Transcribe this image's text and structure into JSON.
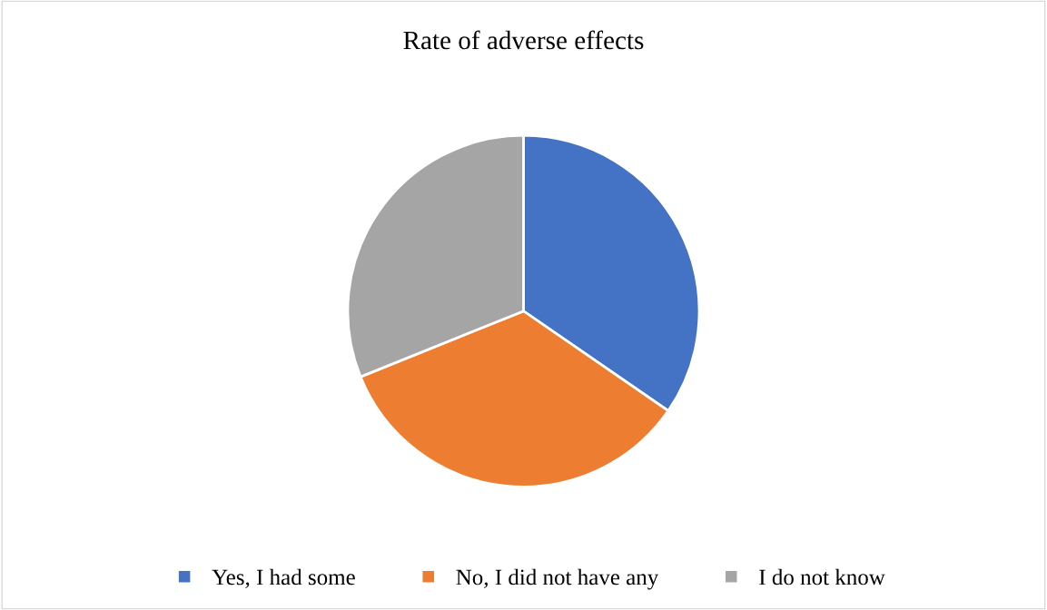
{
  "chart_data": {
    "type": "pie",
    "title": "Rate of adverse effects",
    "categories": [
      "Yes, I had some",
      "No, I did not have any",
      "I do not know"
    ],
    "values": [
      34.6,
      34.3,
      31.1
    ],
    "colors": [
      "#4472c4",
      "#ed7d31",
      "#a5a5a5"
    ],
    "legend": "bottom"
  }
}
